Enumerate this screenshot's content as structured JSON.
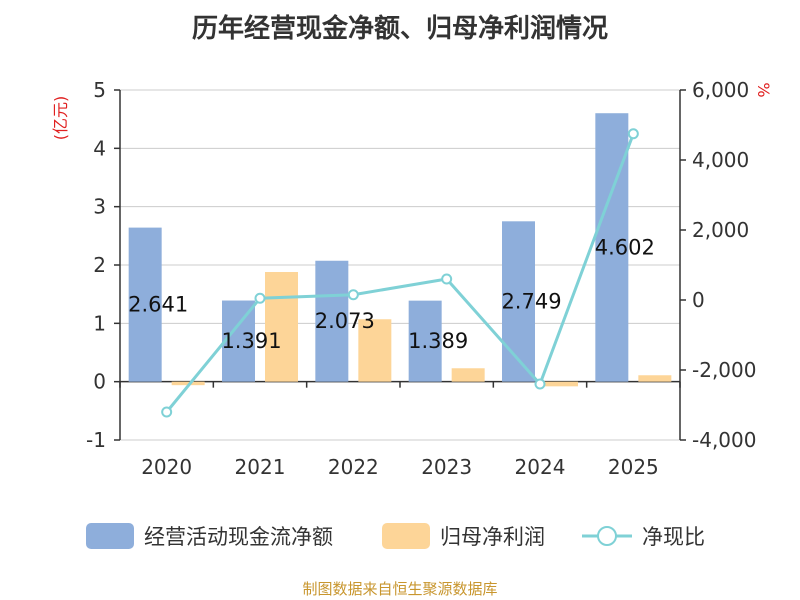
{
  "title": "历年经营现金净额、归母净利润情况",
  "footer": "制图数据来自恒生聚源数据库",
  "colors": {
    "cash": "#8eaedb",
    "profit": "#fdd598",
    "ratio": "#7fd1d6",
    "unit": "#e02020",
    "footer": "#c8962e"
  },
  "chart_data": {
    "type": "bar",
    "categories": [
      "2020",
      "2021",
      "2022",
      "2023",
      "2024",
      "2025"
    ],
    "series": [
      {
        "name": "经营活动现金流净额",
        "type": "bar",
        "axis": "left",
        "values": [
          2.641,
          1.391,
          2.073,
          1.389,
          2.749,
          4.602
        ]
      },
      {
        "name": "归母净利润",
        "type": "bar",
        "axis": "left",
        "values": [
          -0.06,
          1.88,
          1.07,
          0.23,
          -0.08,
          0.11
        ]
      },
      {
        "name": "净现比",
        "type": "line",
        "axis": "right",
        "values": [
          -3200,
          50,
          150,
          600,
          -2400,
          4750
        ]
      }
    ],
    "data_labels": [
      "2.641",
      "1.391",
      "2.073",
      "1.389",
      "2.749",
      "4.602"
    ],
    "y_left": {
      "label": "(亿元)",
      "ylim": [
        -1,
        5
      ],
      "ticks": [
        "-1",
        "0",
        "1",
        "2",
        "3",
        "4",
        "5"
      ]
    },
    "y_right": {
      "label": "%",
      "ylim": [
        -4000,
        6000
      ],
      "ticks": [
        "-4,000",
        "-2,000",
        "0",
        "2,000",
        "4,000",
        "6,000"
      ]
    },
    "grid": true,
    "legend": "bottom"
  }
}
